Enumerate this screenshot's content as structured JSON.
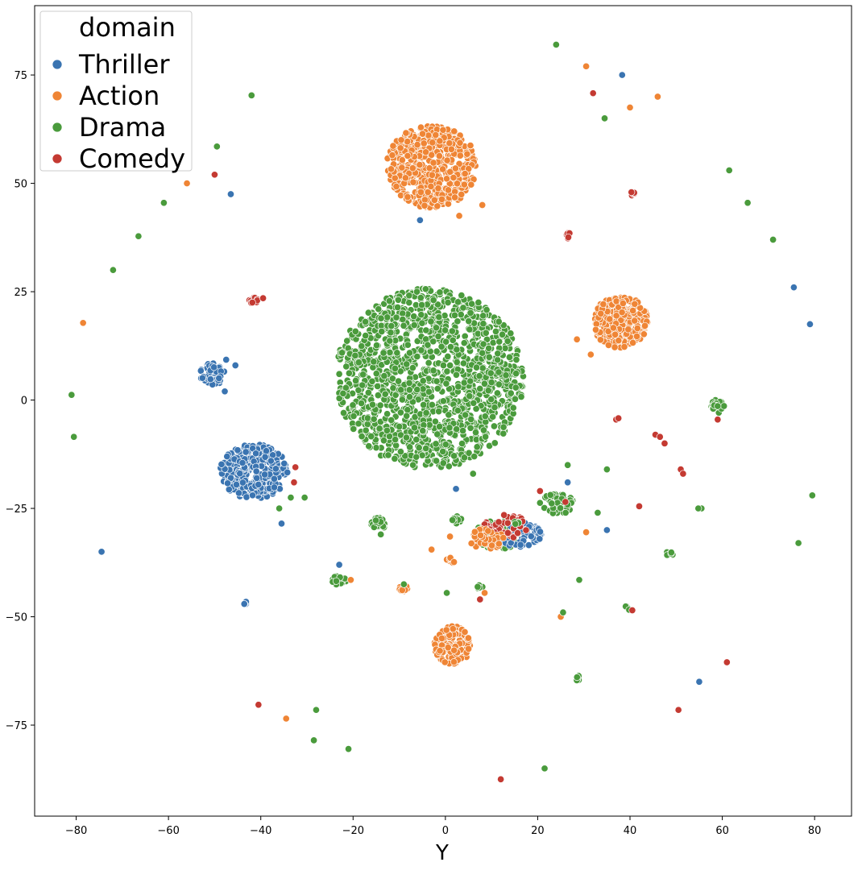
{
  "chart_data": {
    "type": "scatter",
    "title": "",
    "xlabel": "Y",
    "ylabel": "",
    "xlim": [
      -89,
      88
    ],
    "ylim": [
      -96,
      91
    ],
    "xticks": [
      -80,
      -60,
      -40,
      -20,
      0,
      20,
      40,
      60,
      80
    ],
    "xtick_labels": [
      "−80",
      "−60",
      "−40",
      "−20",
      "0",
      "20",
      "40",
      "60",
      "80"
    ],
    "yticks": [
      75,
      50,
      25,
      0,
      -25,
      -50,
      -75
    ],
    "ytick_labels": [
      "75",
      "50",
      "25",
      "0",
      "−25",
      "−50",
      "−75"
    ],
    "grid": false,
    "legend": {
      "title": "domain",
      "position": "top-left",
      "entries": [
        {
          "label": "Thriller",
          "color": "#3a74b1"
        },
        {
          "label": "Action",
          "color": "#ef8535"
        },
        {
          "label": "Drama",
          "color": "#4a9b3c"
        },
        {
          "label": "Comedy",
          "color": "#c43a32"
        }
      ]
    },
    "clusters": [
      {
        "series": "Drama",
        "cx": -3.5,
        "cy": 5,
        "rx": 21,
        "ry": 21.5,
        "n": 1400
      },
      {
        "series": "Action",
        "cx": -3,
        "cy": 54,
        "rx": 10,
        "ry": 10,
        "n": 520
      },
      {
        "series": "Action",
        "cx": 38,
        "cy": 18,
        "rx": 6.2,
        "ry": 6.2,
        "n": 280
      },
      {
        "series": "Thriller",
        "cx": -41.5,
        "cy": -16.5,
        "rx": 7.5,
        "ry": 6.5,
        "n": 300
      },
      {
        "series": "Thriller",
        "cx": -50.5,
        "cy": 6,
        "rx": 2.8,
        "ry": 2.6,
        "n": 60
      },
      {
        "series": "Action",
        "cx": 1.5,
        "cy": -56.5,
        "rx": 4.2,
        "ry": 4.5,
        "n": 160
      },
      {
        "series": "Drama",
        "cx": 12,
        "cy": -31,
        "rx": 6,
        "ry": 3.5,
        "n": 90
      },
      {
        "series": "Thriller",
        "cx": 16,
        "cy": -31,
        "rx": 5,
        "ry": 3,
        "n": 70
      },
      {
        "series": "Comedy",
        "cx": 13,
        "cy": -29,
        "rx": 5,
        "ry": 3,
        "n": 45
      },
      {
        "series": "Drama",
        "cx": 24,
        "cy": -24,
        "rx": 4,
        "ry": 2.5,
        "n": 50
      },
      {
        "series": "Action",
        "cx": 9,
        "cy": -32,
        "rx": 4,
        "ry": 2.5,
        "n": 40
      },
      {
        "series": "Drama",
        "cx": 59,
        "cy": -1.5,
        "rx": 1.5,
        "ry": 1.8,
        "n": 28
      },
      {
        "series": "Drama",
        "cx": -14.5,
        "cy": -28.5,
        "rx": 1.8,
        "ry": 1.4,
        "n": 24
      },
      {
        "series": "Drama",
        "cx": -23,
        "cy": -41.5,
        "rx": 1.6,
        "ry": 1.2,
        "n": 22
      },
      {
        "series": "Comedy",
        "cx": -41.5,
        "cy": 23,
        "rx": 1.1,
        "ry": 0.8,
        "n": 14
      },
      {
        "series": "Drama",
        "cx": 2.5,
        "cy": -27.5,
        "rx": 1.2,
        "ry": 1,
        "n": 12
      },
      {
        "series": "Action",
        "cx": -9,
        "cy": -43.5,
        "rx": 1,
        "ry": 0.7,
        "n": 10
      },
      {
        "series": "Action",
        "cx": 1,
        "cy": -37,
        "rx": 1.2,
        "ry": 0.8,
        "n": 10
      },
      {
        "series": "Drama",
        "cx": 48.5,
        "cy": -35.5,
        "rx": 0.8,
        "ry": 0.6,
        "n": 8
      },
      {
        "series": "Drama",
        "cx": 28.5,
        "cy": -64,
        "rx": 0.6,
        "ry": 1,
        "n": 6
      },
      {
        "series": "Comedy",
        "cx": 26.5,
        "cy": 38,
        "rx": 0.6,
        "ry": 0.8,
        "n": 6
      },
      {
        "series": "Comedy",
        "cx": 40.5,
        "cy": 47.8,
        "rx": 0.5,
        "ry": 0.6,
        "n": 5
      },
      {
        "series": "Thriller",
        "cx": -43.5,
        "cy": -46.8,
        "rx": 0.5,
        "ry": 0.5,
        "n": 5
      },
      {
        "series": "Drama",
        "cx": 7.5,
        "cy": -43,
        "rx": 1,
        "ry": 0.6,
        "n": 6
      },
      {
        "series": "Drama",
        "cx": 15.5,
        "cy": -28.5,
        "rx": 0.8,
        "ry": 0.6,
        "n": 5
      },
      {
        "series": "Drama",
        "cx": 39.5,
        "cy": -48,
        "rx": 0.8,
        "ry": 0.5,
        "n": 5
      }
    ],
    "points": [
      {
        "series": "Thriller",
        "x": 38.3,
        "y": 75
      },
      {
        "series": "Thriller",
        "x": -46.5,
        "y": 47.5
      },
      {
        "series": "Thriller",
        "x": 75.5,
        "y": 26
      },
      {
        "series": "Thriller",
        "x": 79,
        "y": 17.5
      },
      {
        "series": "Thriller",
        "x": -74.5,
        "y": -35
      },
      {
        "series": "Thriller",
        "x": 55,
        "y": -65
      },
      {
        "series": "Thriller",
        "x": 35,
        "y": -30
      },
      {
        "series": "Thriller",
        "x": 2.3,
        "y": -20.5
      },
      {
        "series": "Thriller",
        "x": -5.5,
        "y": 41.5
      },
      {
        "series": "Thriller",
        "x": -47.8,
        "y": 2
      },
      {
        "series": "Thriller",
        "x": -45.5,
        "y": 8
      },
      {
        "series": "Thriller",
        "x": -47.5,
        "y": 9.3
      },
      {
        "series": "Thriller",
        "x": -35.5,
        "y": -28.5
      },
      {
        "series": "Thriller",
        "x": 26.5,
        "y": -19
      },
      {
        "series": "Thriller",
        "x": -23,
        "y": -38
      },
      {
        "series": "Action",
        "x": 30.5,
        "y": 77
      },
      {
        "series": "Action",
        "x": 46,
        "y": 70
      },
      {
        "series": "Action",
        "x": 40,
        "y": 67.5
      },
      {
        "series": "Action",
        "x": -56,
        "y": 50
      },
      {
        "series": "Action",
        "x": -78.5,
        "y": 17.8
      },
      {
        "series": "Action",
        "x": 8,
        "y": 45
      },
      {
        "series": "Action",
        "x": 3,
        "y": 42.5
      },
      {
        "series": "Action",
        "x": 28.5,
        "y": 14
      },
      {
        "series": "Action",
        "x": 31.5,
        "y": 10.5
      },
      {
        "series": "Action",
        "x": -34.5,
        "y": -73.5
      },
      {
        "series": "Action",
        "x": 25,
        "y": -50
      },
      {
        "series": "Action",
        "x": 30.5,
        "y": -30.5
      },
      {
        "series": "Action",
        "x": -3,
        "y": -34.5
      },
      {
        "series": "Action",
        "x": 1,
        "y": -31.5
      },
      {
        "series": "Action",
        "x": 8.5,
        "y": -44.5
      },
      {
        "series": "Action",
        "x": -20.5,
        "y": -41.5
      },
      {
        "series": "Drama",
        "x": 24,
        "y": 82
      },
      {
        "series": "Drama",
        "x": -42,
        "y": 70.3
      },
      {
        "series": "Drama",
        "x": 34.5,
        "y": 65
      },
      {
        "series": "Drama",
        "x": -49.5,
        "y": 58.5
      },
      {
        "series": "Drama",
        "x": 61.5,
        "y": 53
      },
      {
        "series": "Drama",
        "x": -61,
        "y": 45.5
      },
      {
        "series": "Drama",
        "x": 65.5,
        "y": 45.5
      },
      {
        "series": "Drama",
        "x": -66.5,
        "y": 37.8
      },
      {
        "series": "Drama",
        "x": 71,
        "y": 37
      },
      {
        "series": "Drama",
        "x": -72,
        "y": 30
      },
      {
        "series": "Drama",
        "x": -81,
        "y": 1.2
      },
      {
        "series": "Drama",
        "x": -80.5,
        "y": -8.5
      },
      {
        "series": "Drama",
        "x": 79.5,
        "y": -22
      },
      {
        "series": "Drama",
        "x": 76.5,
        "y": -33
      },
      {
        "series": "Drama",
        "x": 35,
        "y": -16
      },
      {
        "series": "Drama",
        "x": 26.5,
        "y": -15
      },
      {
        "series": "Drama",
        "x": 55.5,
        "y": -25
      },
      {
        "series": "Drama",
        "x": 54.8,
        "y": -25
      },
      {
        "series": "Drama",
        "x": 33,
        "y": -26
      },
      {
        "series": "Drama",
        "x": 29,
        "y": -41.5
      },
      {
        "series": "Drama",
        "x": 25.5,
        "y": -49
      },
      {
        "series": "Drama",
        "x": 21.5,
        "y": -85
      },
      {
        "series": "Drama",
        "x": -28,
        "y": -71.5
      },
      {
        "series": "Drama",
        "x": -28.5,
        "y": -78.5
      },
      {
        "series": "Drama",
        "x": -21,
        "y": -80.5
      },
      {
        "series": "Drama",
        "x": 0.3,
        "y": -44.5
      },
      {
        "series": "Drama",
        "x": -36,
        "y": -25
      },
      {
        "series": "Drama",
        "x": -30.5,
        "y": -22.5
      },
      {
        "series": "Drama",
        "x": -33.5,
        "y": -22.5
      },
      {
        "series": "Drama",
        "x": -9,
        "y": -42.5
      },
      {
        "series": "Drama",
        "x": 6,
        "y": -17
      },
      {
        "series": "Drama",
        "x": -14,
        "y": -31
      },
      {
        "series": "Comedy",
        "x": 32,
        "y": 70.8
      },
      {
        "series": "Comedy",
        "x": -50,
        "y": 52
      },
      {
        "series": "Comedy",
        "x": 37,
        "y": -4.5
      },
      {
        "series": "Comedy",
        "x": 37.5,
        "y": -4.2
      },
      {
        "series": "Comedy",
        "x": 45.5,
        "y": -8
      },
      {
        "series": "Comedy",
        "x": 46.5,
        "y": -8.5
      },
      {
        "series": "Comedy",
        "x": 47.5,
        "y": -10
      },
      {
        "series": "Comedy",
        "x": 59,
        "y": -4.5
      },
      {
        "series": "Comedy",
        "x": 51,
        "y": -16
      },
      {
        "series": "Comedy",
        "x": 51.5,
        "y": -17
      },
      {
        "series": "Comedy",
        "x": 42,
        "y": -24.5
      },
      {
        "series": "Comedy",
        "x": 40.5,
        "y": -48.5
      },
      {
        "series": "Comedy",
        "x": 61,
        "y": -60.5
      },
      {
        "series": "Comedy",
        "x": 50.5,
        "y": -71.5
      },
      {
        "series": "Comedy",
        "x": -40.5,
        "y": -70.3
      },
      {
        "series": "Comedy",
        "x": 12,
        "y": -87.5
      },
      {
        "series": "Comedy",
        "x": -32.5,
        "y": -15.5
      },
      {
        "series": "Comedy",
        "x": -32.8,
        "y": -19
      },
      {
        "series": "Comedy",
        "x": 20.5,
        "y": -21
      },
      {
        "series": "Comedy",
        "x": 7.5,
        "y": -46
      },
      {
        "series": "Comedy",
        "x": -39.5,
        "y": 23.5
      },
      {
        "series": "Comedy",
        "x": 26,
        "y": -23.5
      }
    ]
  }
}
